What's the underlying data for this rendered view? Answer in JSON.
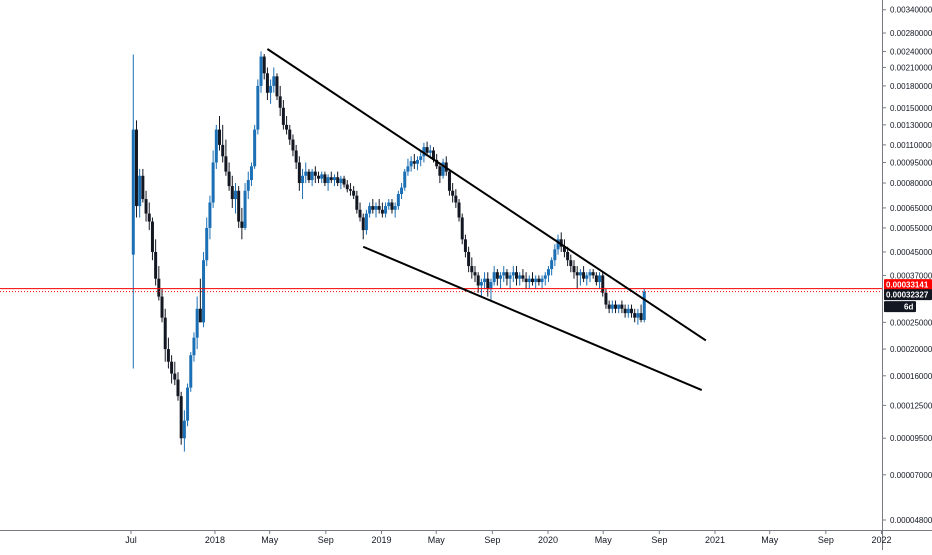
{
  "chart_data": {
    "type": "candlestick",
    "scale": "log",
    "grid": false,
    "x_axis_labels": [
      "Jul",
      "2018",
      "May",
      "Sep",
      "2019",
      "May",
      "Sep",
      "2020",
      "May",
      "Sep",
      "2021",
      "May",
      "Sep",
      "2022"
    ],
    "y_axis_ticks": [
      "0.00340000",
      "0.00280000",
      "0.00240000",
      "0.00210000",
      "0.00180000",
      "0.00150000",
      "0.00130000",
      "0.00110000",
      "0.00095000",
      "0.00080000",
      "0.00065000",
      "0.00055000",
      "0.00045000",
      "0.00037000",
      "0.00025000",
      "0.00020000",
      "0.00016000",
      "0.00012500",
      "0.00009500",
      "0.00007000",
      "0.00004800"
    ],
    "y_range": [
      4.3e-05,
      0.0038
    ],
    "price_tags": [
      {
        "name": "resistance-price",
        "value": "0.00033141",
        "color": "#ff0000",
        "price": 0.00033141
      },
      {
        "name": "current-price",
        "value": "0.00032327",
        "color": "#131722",
        "price": 0.00032327
      },
      {
        "name": "countdown",
        "value": "6d 15h",
        "color": "#131722"
      }
    ],
    "horizontal_lines": [
      {
        "price": 0.00033141,
        "color": "#ff0000",
        "style": "solid"
      },
      {
        "price": 0.00032327,
        "color": "#ff0000",
        "style": "dotted"
      }
    ],
    "trendlines": [
      {
        "name": "descending-resistance-line",
        "from": [
          "2018-04-26",
          0.00245
        ],
        "to": [
          "2020-12-12",
          0.000215
        ]
      },
      {
        "name": "descending-support-line",
        "from": [
          "2018-11-22",
          0.00047
        ],
        "to": [
          "2020-12-03",
          0.000142
        ]
      }
    ],
    "candle_colors": {
      "up": "#1b6fb4",
      "down": "#131722"
    },
    "candles": [
      [
        "2017-07-06",
        0.00044,
        0.00234,
        0.00017,
        0.00125
      ],
      [
        "2017-07-13",
        0.00125,
        0.00135,
        0.0006,
        0.00066
      ],
      [
        "2017-07-20",
        0.00066,
        0.0009,
        0.0006,
        0.00085
      ],
      [
        "2017-07-27",
        0.00085,
        0.0009,
        0.00068,
        0.0007
      ],
      [
        "2017-08-03",
        0.0007,
        0.00075,
        0.00058,
        0.00062
      ],
      [
        "2017-08-10",
        0.00062,
        0.00068,
        0.00054,
        0.00058
      ],
      [
        "2017-08-17",
        0.00058,
        0.0006,
        0.00042,
        0.00045
      ],
      [
        "2017-08-24",
        0.00045,
        0.0005,
        0.00034,
        0.00036
      ],
      [
        "2017-08-31",
        0.00036,
        0.0004,
        0.0003,
        0.00031
      ],
      [
        "2017-09-07",
        0.00031,
        0.00033,
        0.00025,
        0.00026
      ],
      [
        "2017-09-14",
        0.00026,
        0.00028,
        0.00018,
        0.0002
      ],
      [
        "2017-09-21",
        0.0002,
        0.00022,
        0.00017,
        0.00018
      ],
      [
        "2017-09-28",
        0.00018,
        0.00019,
        0.00015,
        0.000163
      ],
      [
        "2017-10-05",
        0.000163,
        0.00018,
        0.000148,
        0.000155
      ],
      [
        "2017-10-12",
        0.000155,
        0.000165,
        0.00013,
        0.000135
      ],
      [
        "2017-10-19",
        0.000135,
        0.00014,
        9e-05,
        9.5e-05
      ],
      [
        "2017-10-26",
        9.5e-05,
        0.00012,
        8.5e-05,
        0.00011
      ],
      [
        "2017-11-02",
        0.00011,
        0.00015,
        0.000105,
        0.000145
      ],
      [
        "2017-11-09",
        0.000145,
        0.000195,
        0.00014,
        0.00019
      ],
      [
        "2017-11-16",
        0.00019,
        0.00023,
        0.00018,
        0.00022
      ],
      [
        "2017-11-23",
        0.00022,
        0.00031,
        0.0002,
        0.00028
      ],
      [
        "2017-11-30",
        0.00028,
        0.00036,
        0.00026,
        0.00025
      ],
      [
        "2017-12-07",
        0.00025,
        0.00045,
        0.00024,
        0.00042
      ],
      [
        "2017-12-14",
        0.00042,
        0.0006,
        0.0004,
        0.00055
      ],
      [
        "2017-12-21",
        0.00055,
        0.00072,
        0.0005,
        0.00068
      ],
      [
        "2017-12-28",
        0.00068,
        0.00105,
        0.00065,
        0.00095
      ],
      [
        "2018-01-04",
        0.00095,
        0.0013,
        0.0009,
        0.00125
      ],
      [
        "2018-01-11",
        0.00125,
        0.0014,
        0.00105,
        0.0011
      ],
      [
        "2018-01-18",
        0.0011,
        0.0013,
        0.00095,
        0.001
      ],
      [
        "2018-01-25",
        0.001,
        0.00115,
        0.00085,
        0.00088
      ],
      [
        "2018-02-01",
        0.00088,
        0.00095,
        0.00075,
        0.00078
      ],
      [
        "2018-02-08",
        0.00078,
        0.00085,
        0.00065,
        0.0007
      ],
      [
        "2018-02-15",
        0.0007,
        0.0008,
        0.00062,
        0.00075
      ],
      [
        "2018-02-22",
        0.00075,
        0.00078,
        0.00055,
        0.00058
      ],
      [
        "2018-03-01",
        0.00058,
        0.00065,
        0.0005,
        0.00055
      ],
      [
        "2018-03-08",
        0.00055,
        0.0008,
        0.00054,
        0.00075
      ],
      [
        "2018-03-15",
        0.00075,
        0.00088,
        0.0007,
        0.00082
      ],
      [
        "2018-03-22",
        0.00082,
        0.00095,
        0.00078,
        0.00092
      ],
      [
        "2018-03-29",
        0.00092,
        0.0013,
        0.0009,
        0.00125
      ],
      [
        "2018-04-05",
        0.00125,
        0.0019,
        0.0012,
        0.0018
      ],
      [
        "2018-04-12",
        0.0018,
        0.0024,
        0.0017,
        0.0023
      ],
      [
        "2018-04-19",
        0.0023,
        0.00235,
        0.0019,
        0.002
      ],
      [
        "2018-04-26",
        0.002,
        0.0021,
        0.0016,
        0.0017
      ],
      [
        "2018-05-03",
        0.0017,
        0.0019,
        0.00155,
        0.0018
      ],
      [
        "2018-05-10",
        0.0018,
        0.0021,
        0.0017,
        0.00195
      ],
      [
        "2018-05-17",
        0.00195,
        0.002,
        0.0016,
        0.00165
      ],
      [
        "2018-05-24",
        0.00165,
        0.0018,
        0.0014,
        0.0015
      ],
      [
        "2018-05-31",
        0.0015,
        0.0016,
        0.00125,
        0.0013
      ],
      [
        "2018-06-07",
        0.0013,
        0.0014,
        0.0012,
        0.00125
      ],
      [
        "2018-06-14",
        0.00125,
        0.0013,
        0.0011,
        0.00115
      ],
      [
        "2018-06-21",
        0.00115,
        0.0012,
        0.001,
        0.00105
      ],
      [
        "2018-06-28",
        0.00105,
        0.0011,
        0.0009,
        0.00095
      ],
      [
        "2018-07-05",
        0.00095,
        0.001,
        0.00075,
        0.0008
      ],
      [
        "2018-07-12",
        0.0008,
        0.0009,
        0.0007,
        0.00085
      ],
      [
        "2018-07-19",
        0.00085,
        0.00095,
        0.0008,
        0.00088
      ],
      [
        "2018-07-26",
        0.00088,
        0.0009,
        0.0008,
        0.00082
      ],
      [
        "2018-08-02",
        0.00082,
        0.0009,
        0.00078,
        0.00088
      ],
      [
        "2018-08-09",
        0.00088,
        0.00092,
        0.0008,
        0.00085
      ],
      [
        "2018-08-16",
        0.00085,
        0.00088,
        0.0008,
        0.00083
      ],
      [
        "2018-08-23",
        0.00083,
        0.00088,
        0.0008,
        0.00086
      ],
      [
        "2018-08-30",
        0.00086,
        0.00088,
        0.00078,
        0.0008
      ],
      [
        "2018-09-06",
        0.0008,
        0.00086,
        0.00075,
        0.00084
      ],
      [
        "2018-09-13",
        0.00084,
        0.00088,
        0.0008,
        0.00082
      ],
      [
        "2018-09-20",
        0.00082,
        0.00086,
        0.00078,
        0.00084
      ],
      [
        "2018-09-27",
        0.00084,
        0.00088,
        0.00078,
        0.0008
      ],
      [
        "2018-10-04",
        0.0008,
        0.00085,
        0.00076,
        0.00083
      ],
      [
        "2018-10-11",
        0.00083,
        0.00085,
        0.00077,
        0.00079
      ],
      [
        "2018-10-18",
        0.00079,
        0.00082,
        0.00074,
        0.00076
      ],
      [
        "2018-10-25",
        0.00076,
        0.0008,
        0.00072,
        0.00075
      ],
      [
        "2018-11-01",
        0.00075,
        0.00078,
        0.0007,
        0.00072
      ],
      [
        "2018-11-08",
        0.00072,
        0.00075,
        0.00062,
        0.00064
      ],
      [
        "2018-11-15",
        0.00064,
        0.00068,
        0.00058,
        0.0006
      ],
      [
        "2018-11-22",
        0.0006,
        0.00062,
        0.0005,
        0.00054
      ],
      [
        "2018-11-29",
        0.00054,
        0.00064,
        0.00052,
        0.00062
      ],
      [
        "2018-12-06",
        0.00062,
        0.00068,
        0.0006,
        0.00066
      ],
      [
        "2018-12-13",
        0.00066,
        0.0007,
        0.00062,
        0.00064
      ],
      [
        "2018-12-20",
        0.00064,
        0.00068,
        0.0006,
        0.00066
      ],
      [
        "2018-12-27",
        0.00066,
        0.0007,
        0.00062,
        0.00064
      ],
      [
        "2019-01-03",
        0.00064,
        0.00068,
        0.0006,
        0.00062
      ],
      [
        "2019-01-10",
        0.00062,
        0.00068,
        0.0006,
        0.00066
      ],
      [
        "2019-01-17",
        0.00066,
        0.0007,
        0.00064,
        0.00068
      ],
      [
        "2019-01-24",
        0.00068,
        0.0007,
        0.00062,
        0.00064
      ],
      [
        "2019-01-31",
        0.00064,
        0.00068,
        0.0006,
        0.00066
      ],
      [
        "2019-02-07",
        0.00066,
        0.00075,
        0.00064,
        0.00073
      ],
      [
        "2019-02-14",
        0.00073,
        0.0008,
        0.0007,
        0.00077
      ],
      [
        "2019-02-21",
        0.00077,
        0.0009,
        0.00075,
        0.00088
      ],
      [
        "2019-02-28",
        0.00088,
        0.00098,
        0.00085,
        0.00092
      ],
      [
        "2019-03-07",
        0.00092,
        0.001,
        0.00088,
        0.00096
      ],
      [
        "2019-03-14",
        0.00096,
        0.00102,
        0.0009,
        0.00094
      ],
      [
        "2019-03-21",
        0.00094,
        0.001,
        0.00089,
        0.00097
      ],
      [
        "2019-03-28",
        0.00097,
        0.00105,
        0.00092,
        0.001
      ],
      [
        "2019-04-04",
        0.001,
        0.00112,
        0.00095,
        0.00108
      ],
      [
        "2019-04-11",
        0.00108,
        0.00113,
        0.001,
        0.00103
      ],
      [
        "2019-04-18",
        0.00103,
        0.0011,
        0.00098,
        0.00105
      ],
      [
        "2019-04-25",
        0.00105,
        0.00108,
        0.00095,
        0.00097
      ],
      [
        "2019-05-02",
        0.00097,
        0.00102,
        0.0009,
        0.00092
      ],
      [
        "2019-05-09",
        0.00092,
        0.00095,
        0.0008,
        0.00085
      ],
      [
        "2019-05-16",
        0.00085,
        0.00098,
        0.00083,
        0.00095
      ],
      [
        "2019-05-23",
        0.00095,
        0.001,
        0.00085,
        0.00088
      ],
      [
        "2019-05-30",
        0.00088,
        0.0009,
        0.00072,
        0.00075
      ],
      [
        "2019-06-06",
        0.00075,
        0.0008,
        0.00068,
        0.00072
      ],
      [
        "2019-06-13",
        0.00072,
        0.00076,
        0.00065,
        0.00068
      ],
      [
        "2019-06-20",
        0.00068,
        0.0007,
        0.00058,
        0.0006
      ],
      [
        "2019-06-27",
        0.0006,
        0.00062,
        0.00048,
        0.0005
      ],
      [
        "2019-07-04",
        0.0005,
        0.00052,
        0.00043,
        0.00045
      ],
      [
        "2019-07-11",
        0.00045,
        0.00047,
        0.00038,
        0.0004
      ],
      [
        "2019-07-18",
        0.0004,
        0.00043,
        0.00036,
        0.00038
      ],
      [
        "2019-07-25",
        0.00038,
        0.0004,
        0.00035,
        0.00037
      ],
      [
        "2019-08-01",
        0.00037,
        0.00038,
        0.00032,
        0.00034
      ],
      [
        "2019-08-08",
        0.00034,
        0.00036,
        0.00031,
        0.00035
      ],
      [
        "2019-08-15",
        0.00035,
        0.00038,
        0.00033,
        0.00036
      ],
      [
        "2019-08-22",
        0.00036,
        0.00038,
        0.00031,
        0.00033
      ],
      [
        "2019-08-29",
        0.00033,
        0.00036,
        0.0003,
        0.00035
      ],
      [
        "2019-09-05",
        0.00035,
        0.0004,
        0.00034,
        0.00038
      ],
      [
        "2019-09-12",
        0.00038,
        0.00039,
        0.00034,
        0.00036
      ],
      [
        "2019-09-19",
        0.00036,
        0.00038,
        0.00033,
        0.00037
      ],
      [
        "2019-09-26",
        0.00037,
        0.0004,
        0.00035,
        0.00038
      ],
      [
        "2019-10-03",
        0.00038,
        0.00039,
        0.00034,
        0.00036
      ],
      [
        "2019-10-10",
        0.00036,
        0.00038,
        0.00033,
        0.00037
      ],
      [
        "2019-10-17",
        0.00037,
        0.0004,
        0.00035,
        0.00038
      ],
      [
        "2019-10-24",
        0.00038,
        0.0004,
        0.00034,
        0.00036
      ],
      [
        "2019-10-31",
        0.00036,
        0.00038,
        0.00034,
        0.00037
      ],
      [
        "2019-11-07",
        0.00037,
        0.00039,
        0.00035,
        0.00036
      ],
      [
        "2019-11-14",
        0.00036,
        0.00038,
        0.00033,
        0.00035
      ],
      [
        "2019-11-21",
        0.00035,
        0.00037,
        0.00033,
        0.00036
      ],
      [
        "2019-11-28",
        0.00036,
        0.00038,
        0.00034,
        0.00035
      ],
      [
        "2019-12-05",
        0.00035,
        0.00037,
        0.00033,
        0.00036
      ],
      [
        "2019-12-12",
        0.00036,
        0.00037,
        0.00034,
        0.00035
      ],
      [
        "2019-12-19",
        0.00035,
        0.00037,
        0.00033,
        0.00036
      ],
      [
        "2019-12-26",
        0.00036,
        0.00038,
        0.00034,
        0.00037
      ],
      [
        "2020-01-02",
        0.00037,
        0.0004,
        0.00035,
        0.00039
      ],
      [
        "2020-01-09",
        0.00039,
        0.00043,
        0.00037,
        0.00042
      ],
      [
        "2020-01-16",
        0.00042,
        0.00048,
        0.0004,
        0.00046
      ],
      [
        "2020-01-23",
        0.00046,
        0.00052,
        0.00044,
        0.0005
      ],
      [
        "2020-01-30",
        0.0005,
        0.00053,
        0.00045,
        0.00047
      ],
      [
        "2020-02-06",
        0.00047,
        0.0005,
        0.00043,
        0.00045
      ],
      [
        "2020-02-13",
        0.00045,
        0.00047,
        0.0004,
        0.00042
      ],
      [
        "2020-02-20",
        0.00042,
        0.00044,
        0.00038,
        0.0004
      ],
      [
        "2020-02-27",
        0.0004,
        0.00042,
        0.00036,
        0.00038
      ],
      [
        "2020-03-05",
        0.00038,
        0.0004,
        0.00033,
        0.00037
      ],
      [
        "2020-03-12",
        0.00037,
        0.00039,
        0.00034,
        0.00038
      ],
      [
        "2020-03-19",
        0.00038,
        0.0004,
        0.00035,
        0.00036
      ],
      [
        "2020-03-26",
        0.00036,
        0.00038,
        0.00034,
        0.00037
      ],
      [
        "2020-04-02",
        0.00037,
        0.00039,
        0.00035,
        0.00038
      ],
      [
        "2020-04-09",
        0.00038,
        0.00039,
        0.00036,
        0.00037
      ],
      [
        "2020-04-16",
        0.00037,
        0.00038,
        0.00034,
        0.00035
      ],
      [
        "2020-04-23",
        0.00035,
        0.00038,
        0.00033,
        0.00037
      ],
      [
        "2020-04-30",
        0.00037,
        0.00038,
        0.00031,
        0.00032
      ],
      [
        "2020-05-07",
        0.00032,
        0.00033,
        0.00028,
        0.00029
      ],
      [
        "2020-05-14",
        0.00029,
        0.0003,
        0.00027,
        0.00028
      ],
      [
        "2020-05-21",
        0.00028,
        0.0003,
        0.00027,
        0.00029
      ],
      [
        "2020-05-28",
        0.00029,
        0.0003,
        0.00027,
        0.00028
      ],
      [
        "2020-06-04",
        0.00028,
        0.00029,
        0.00027,
        0.00029
      ],
      [
        "2020-06-11",
        0.00029,
        0.0003,
        0.00027,
        0.00028
      ],
      [
        "2020-06-18",
        0.00028,
        0.00029,
        0.00026,
        0.00027
      ],
      [
        "2020-06-25",
        0.00027,
        0.00029,
        0.00026,
        0.00028
      ],
      [
        "2020-07-02",
        0.00028,
        0.00029,
        0.00026,
        0.00027
      ],
      [
        "2020-07-09",
        0.00027,
        0.00028,
        0.00025,
        0.00026
      ],
      [
        "2020-07-16",
        0.00026,
        0.00028,
        0.000245,
        0.00027
      ],
      [
        "2020-07-23",
        0.00027,
        0.00029,
        0.00025,
        0.000255
      ],
      [
        "2020-07-30",
        0.000255,
        0.00033,
        0.00025,
        0.00032327
      ]
    ]
  }
}
